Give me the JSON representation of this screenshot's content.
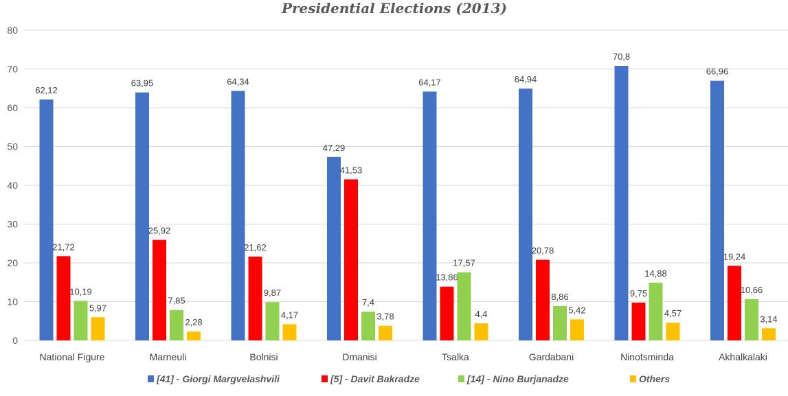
{
  "chart_data": {
    "type": "bar",
    "title": "Presidential Elections (2013)",
    "xlabel": "",
    "ylabel": "",
    "ylim": [
      0,
      80
    ],
    "yticks": [
      0,
      10,
      20,
      30,
      40,
      50,
      60,
      70,
      80
    ],
    "grid": true,
    "legend_position": "bottom",
    "categories": [
      "National Figure",
      "Marneuli",
      "Bolnisi",
      "Dmanisi",
      "Tsalka",
      "Gardabani",
      "Ninotsminda",
      "Akhalkalaki"
    ],
    "series": [
      {
        "name": "[41] - Giorgi Margvelashvili",
        "color": "#4472C4",
        "values": [
          62.12,
          63.95,
          64.34,
          47.29,
          64.17,
          64.94,
          70.8,
          66.96
        ],
        "labels": [
          "62,12",
          "63,95",
          "64,34",
          "47,29",
          "64,17",
          "64,94",
          "70,8",
          "66,96"
        ]
      },
      {
        "name": "[5] - Davit Bakradze",
        "color": "#FF0000",
        "values": [
          21.72,
          25.92,
          21.62,
          41.53,
          13.86,
          20.78,
          9.75,
          19.24
        ],
        "labels": [
          "21,72",
          "25,92",
          "21,62",
          "41,53",
          "13,86",
          "20,78",
          "9,75",
          "19,24"
        ]
      },
      {
        "name": "[14] - Nino Burjanadze",
        "color": "#92D050",
        "values": [
          10.19,
          7.85,
          9.87,
          7.4,
          17.57,
          8.86,
          14.88,
          10.66
        ],
        "labels": [
          "10,19",
          "7,85",
          "9,87",
          "7,4",
          "17,57",
          "8,86",
          "14,88",
          "10,66"
        ]
      },
      {
        "name": "Others",
        "color": "#FFC000",
        "values": [
          5.97,
          2.28,
          4.17,
          3.78,
          4.4,
          5.42,
          4.57,
          3.14
        ],
        "labels": [
          "5,97",
          "2,28",
          "4,17",
          "3,78",
          "4,4",
          "5,42",
          "4,57",
          "3,14"
        ]
      }
    ]
  }
}
